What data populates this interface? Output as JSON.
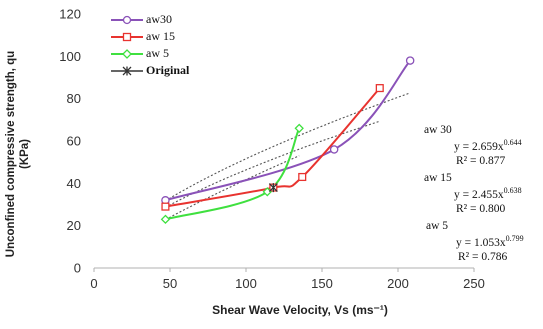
{
  "chart_data": {
    "type": "line",
    "xlabel": "Shear Wave Velocity, Vs (ms⁻¹)",
    "ylabel_lines": [
      "Unconfined compressive strength, qu",
      "(KPa)"
    ],
    "xlim": [
      0,
      250
    ],
    "ylim": [
      0,
      120
    ],
    "xticks": [
      "0",
      "50",
      "100",
      "150",
      "200",
      "250"
    ],
    "yticks": [
      "0",
      "20",
      "40",
      "60",
      "80",
      "100",
      "120"
    ],
    "grid": false,
    "legend_position": "top-left",
    "series": [
      {
        "name": "aw30",
        "color": "#8a52b8",
        "marker": "circle",
        "x": [
          47,
          158,
          208
        ],
        "y": [
          32,
          56,
          98
        ],
        "trendline": {
          "coef": 2.659,
          "exp": 0.644
        }
      },
      {
        "name": "aw 15",
        "color": "#e8332f",
        "marker": "square",
        "x": [
          47,
          118,
          137,
          188
        ],
        "y": [
          29,
          38,
          43,
          85
        ],
        "trendline": {
          "coef": 2.455,
          "exp": 0.638
        }
      },
      {
        "name": "aw 5",
        "color": "#3fe03f",
        "marker": "diamond",
        "x": [
          47,
          114,
          135
        ],
        "y": [
          23,
          36,
          66
        ],
        "trendline": {
          "coef": 1.053,
          "exp": 0.799
        }
      },
      {
        "name": "Original",
        "color": "#333333",
        "marker": "star",
        "x": [
          118
        ],
        "y": [
          38
        ]
      }
    ],
    "equations": [
      {
        "name": "aw 30",
        "prefix": "y = 2.659x",
        "exp": "0.644",
        "r2": "R² = 0.877"
      },
      {
        "name": "aw 15",
        "prefix": "y = 2.455x",
        "exp": "0.638",
        "r2": "R² = 0.800"
      },
      {
        "name": "aw 5",
        "prefix": "y = 1.053x",
        "exp": "0.799",
        "r2": "R² = 0.786"
      }
    ]
  }
}
